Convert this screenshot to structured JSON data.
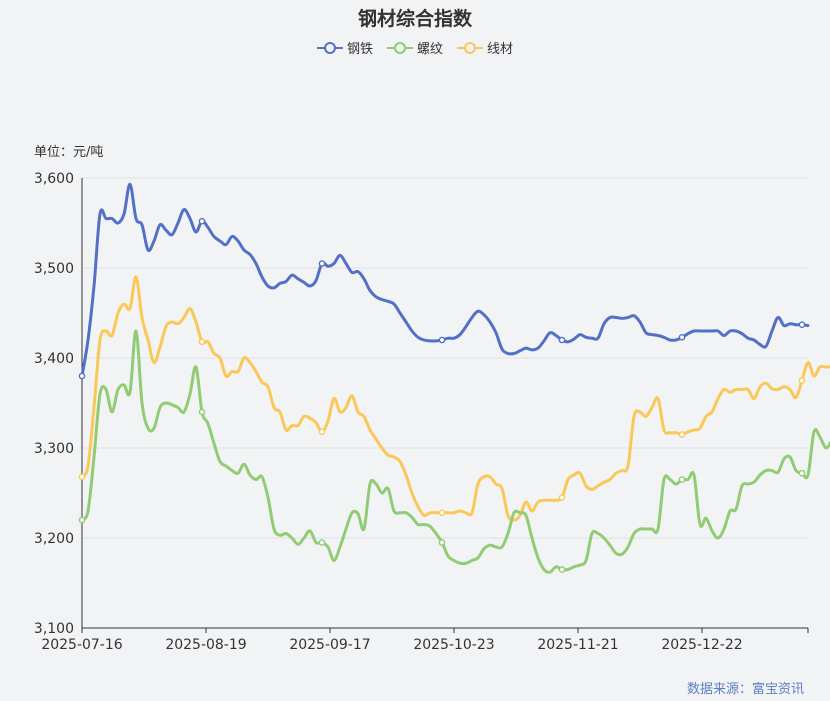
{
  "chart_data": {
    "type": "line",
    "title": "钢材综合指数",
    "unit_label": "单位：元/吨",
    "source": "数据来源：富宝资讯",
    "ylim": [
      3100,
      3600
    ],
    "y_ticks": [
      "3,100",
      "3,200",
      "3,300",
      "3,400",
      "3,500",
      "3,600"
    ],
    "y_tick_values": [
      3100,
      3200,
      3300,
      3400,
      3500,
      3600
    ],
    "x_ticks": [
      "2025-07-16",
      "2025-08-19",
      "2025-09-17",
      "2025-10-23",
      "2025-11-21",
      "2025-12-22"
    ],
    "grid": true,
    "legend_position": "top-center",
    "series": [
      {
        "name": "钢铁",
        "color": "#5470c6",
        "values": [
          3380,
          3420,
          3480,
          3560,
          3555,
          3555,
          3550,
          3560,
          3593,
          3555,
          3548,
          3520,
          3530,
          3548,
          3542,
          3537,
          3550,
          3565,
          3555,
          3540,
          3552,
          3545,
          3535,
          3530,
          3526,
          3535,
          3530,
          3520,
          3515,
          3505,
          3490,
          3480,
          3478,
          3483,
          3485,
          3492,
          3488,
          3484,
          3480,
          3486,
          3505,
          3502,
          3505,
          3514,
          3505,
          3495,
          3496,
          3488,
          3475,
          3468,
          3465,
          3463,
          3460,
          3450,
          3440,
          3430,
          3423,
          3420,
          3419,
          3419,
          3420,
          3422,
          3422,
          3426,
          3435,
          3445,
          3452,
          3448,
          3440,
          3428,
          3410,
          3405,
          3405,
          3408,
          3411,
          3409,
          3411,
          3419,
          3428,
          3425,
          3420,
          3418,
          3421,
          3426,
          3423,
          3422,
          3422,
          3438,
          3445,
          3445,
          3444,
          3445,
          3447,
          3440,
          3428,
          3426,
          3425,
          3423,
          3420,
          3420,
          3423,
          3427,
          3430,
          3430,
          3430,
          3430,
          3430,
          3425,
          3430,
          3430,
          3427,
          3422,
          3420,
          3415,
          3413,
          3430,
          3445,
          3436,
          3438,
          3437,
          3437,
          3436
        ]
      },
      {
        "name": "螺纹",
        "color": "#91cc75",
        "values": [
          3220,
          3230,
          3290,
          3360,
          3365,
          3340,
          3365,
          3370,
          3362,
          3430,
          3350,
          3322,
          3322,
          3345,
          3350,
          3348,
          3345,
          3340,
          3360,
          3390,
          3340,
          3327,
          3305,
          3285,
          3280,
          3275,
          3272,
          3282,
          3270,
          3265,
          3268,
          3245,
          3210,
          3203,
          3205,
          3200,
          3193,
          3200,
          3208,
          3195,
          3195,
          3190,
          3175,
          3190,
          3210,
          3228,
          3227,
          3210,
          3260,
          3260,
          3250,
          3255,
          3230,
          3228,
          3228,
          3223,
          3215,
          3215,
          3213,
          3205,
          3195,
          3180,
          3175,
          3172,
          3172,
          3175,
          3178,
          3188,
          3192,
          3190,
          3190,
          3205,
          3228,
          3228,
          3225,
          3200,
          3178,
          3165,
          3162,
          3168,
          3165,
          3165,
          3168,
          3170,
          3175,
          3205,
          3205,
          3200,
          3192,
          3183,
          3182,
          3190,
          3205,
          3210,
          3210,
          3210,
          3210,
          3265,
          3265,
          3260,
          3265,
          3265,
          3270,
          3215,
          3222,
          3208,
          3200,
          3210,
          3230,
          3232,
          3258,
          3260,
          3262,
          3270,
          3275,
          3275,
          3273,
          3288,
          3290,
          3275,
          3272,
          3270,
          3318,
          3312,
          3300,
          3308,
          3310,
          3300
        ]
      },
      {
        "name": "线材",
        "color": "#fac858",
        "values": [
          3268,
          3280,
          3345,
          3420,
          3430,
          3425,
          3450,
          3460,
          3455,
          3490,
          3445,
          3420,
          3395,
          3412,
          3435,
          3440,
          3438,
          3445,
          3455,
          3440,
          3418,
          3418,
          3405,
          3400,
          3380,
          3385,
          3385,
          3400,
          3395,
          3385,
          3373,
          3368,
          3345,
          3340,
          3320,
          3325,
          3325,
          3335,
          3333,
          3328,
          3318,
          3330,
          3355,
          3340,
          3345,
          3358,
          3340,
          3335,
          3320,
          3310,
          3300,
          3292,
          3290,
          3285,
          3270,
          3250,
          3235,
          3225,
          3228,
          3228,
          3228,
          3228,
          3228,
          3230,
          3228,
          3228,
          3260,
          3268,
          3268,
          3260,
          3255,
          3225,
          3220,
          3225,
          3240,
          3230,
          3240,
          3242,
          3242,
          3242,
          3245,
          3265,
          3270,
          3272,
          3258,
          3254,
          3258,
          3262,
          3265,
          3272,
          3275,
          3280,
          3335,
          3340,
          3335,
          3345,
          3355,
          3320,
          3317,
          3317,
          3315,
          3318,
          3320,
          3322,
          3335,
          3340,
          3355,
          3365,
          3362,
          3365,
          3365,
          3365,
          3355,
          3368,
          3372,
          3366,
          3365,
          3368,
          3365,
          3356,
          3375,
          3395,
          3380,
          3390,
          3390,
          3390
        ]
      }
    ]
  }
}
